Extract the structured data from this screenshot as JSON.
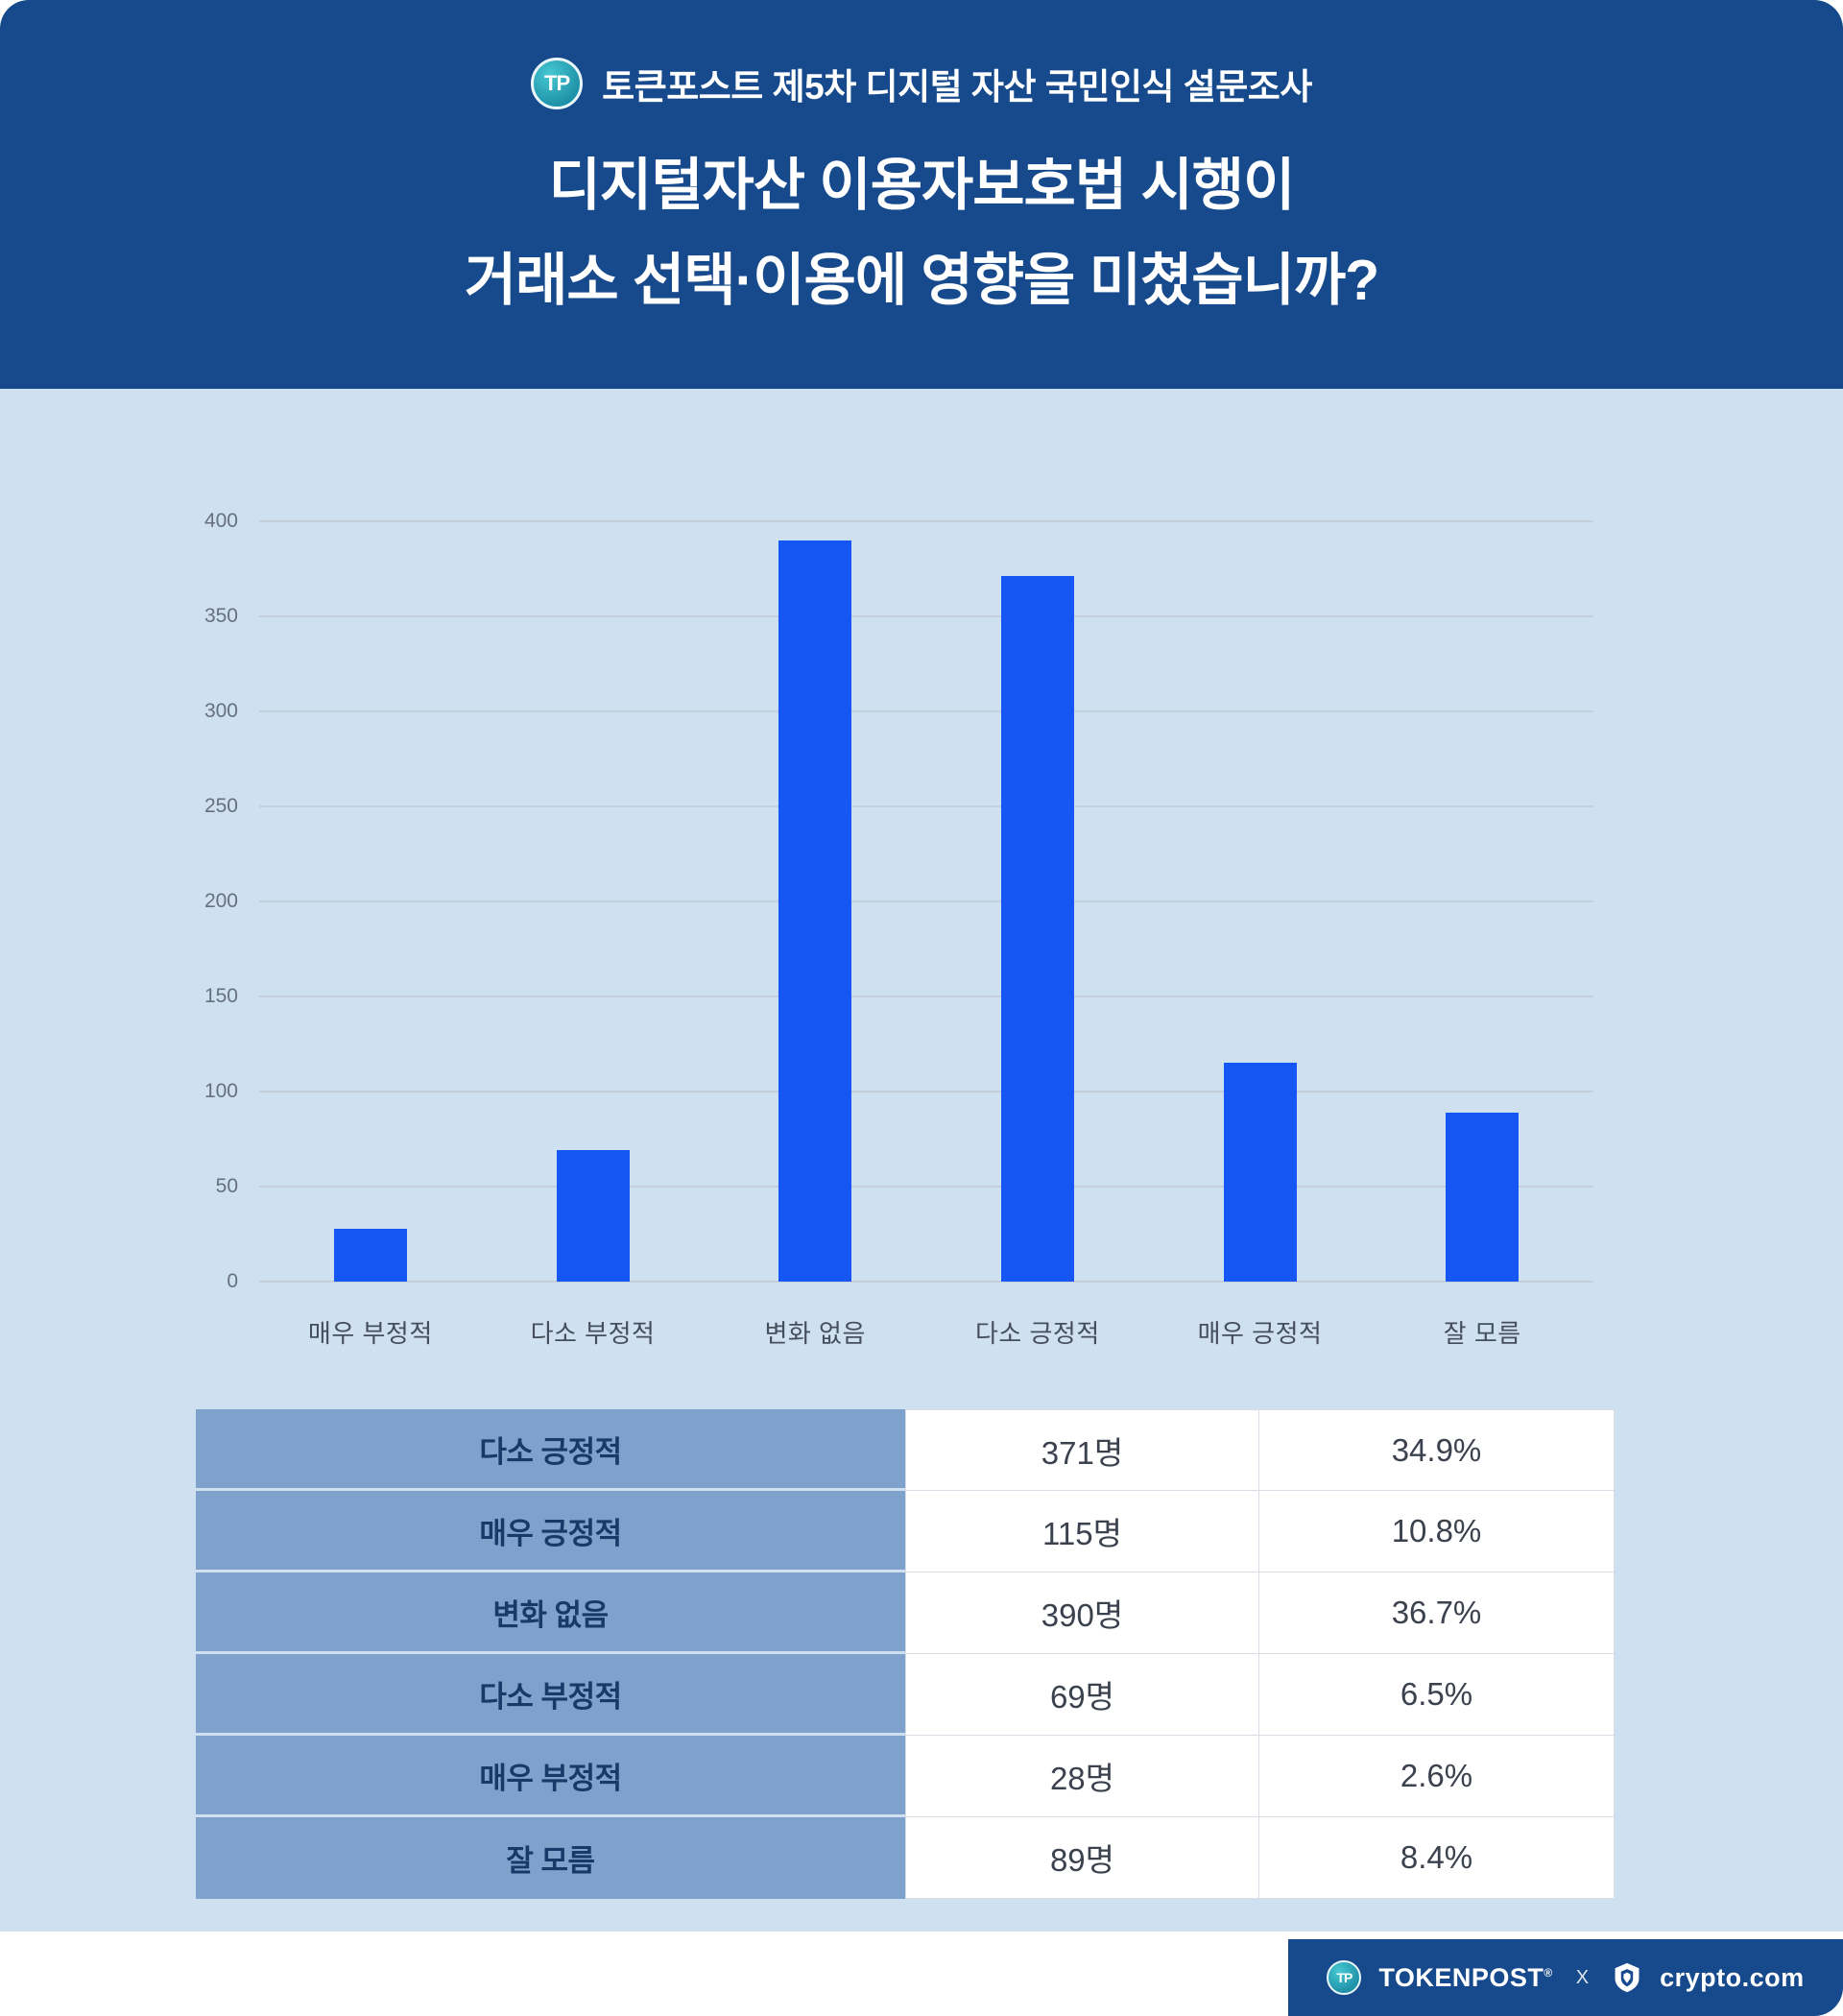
{
  "header": {
    "survey_label": "토큰포스트 제5차 디지털 자산 국민인식 설문조사",
    "title_line1": "디지털자산 이용자보호법 시행이",
    "title_line2": "거래소 선택·이용에 영향을 미쳤습니까?",
    "logo_initials": "TP"
  },
  "chart_data": {
    "type": "bar",
    "categories": [
      "매우 부정적",
      "다소 부정적",
      "변화 없음",
      "다소 긍정적",
      "매우 긍정적",
      "잘 모름"
    ],
    "values": [
      28,
      69,
      390,
      371,
      115,
      89
    ],
    "title": "",
    "xlabel": "",
    "ylabel": "",
    "ylim": [
      0,
      400
    ],
    "yticks": [
      0,
      50,
      100,
      150,
      200,
      250,
      300,
      350,
      400
    ],
    "grid": true,
    "legend": "none",
    "bar_color": "#1656f2"
  },
  "table": {
    "rows": [
      {
        "label": "다소 긍정적",
        "count": "371명",
        "percent": "34.9%"
      },
      {
        "label": "매우 긍정적",
        "count": "115명",
        "percent": "10.8%"
      },
      {
        "label": "변화 없음",
        "count": "390명",
        "percent": "36.7%"
      },
      {
        "label": "다소 부정적",
        "count": "69명",
        "percent": "6.5%"
      },
      {
        "label": "매우 부정적",
        "count": "28명",
        "percent": "2.6%"
      },
      {
        "label": "잘 모름",
        "count": "89명",
        "percent": "8.4%"
      }
    ]
  },
  "footer": {
    "brand_left": "TOKENPOST",
    "reg_mark": "®",
    "separator": "X",
    "brand_right": "crypto.com",
    "logo_initials": "TP"
  },
  "colors": {
    "header_bg": "#164a8c",
    "body_bg": "#cfe0f1",
    "bar_blue": "#1656f2",
    "table_label_bg": "#7ea2cc",
    "table_label_text": "#173a68",
    "logo_teal": "#1d8fa6"
  }
}
